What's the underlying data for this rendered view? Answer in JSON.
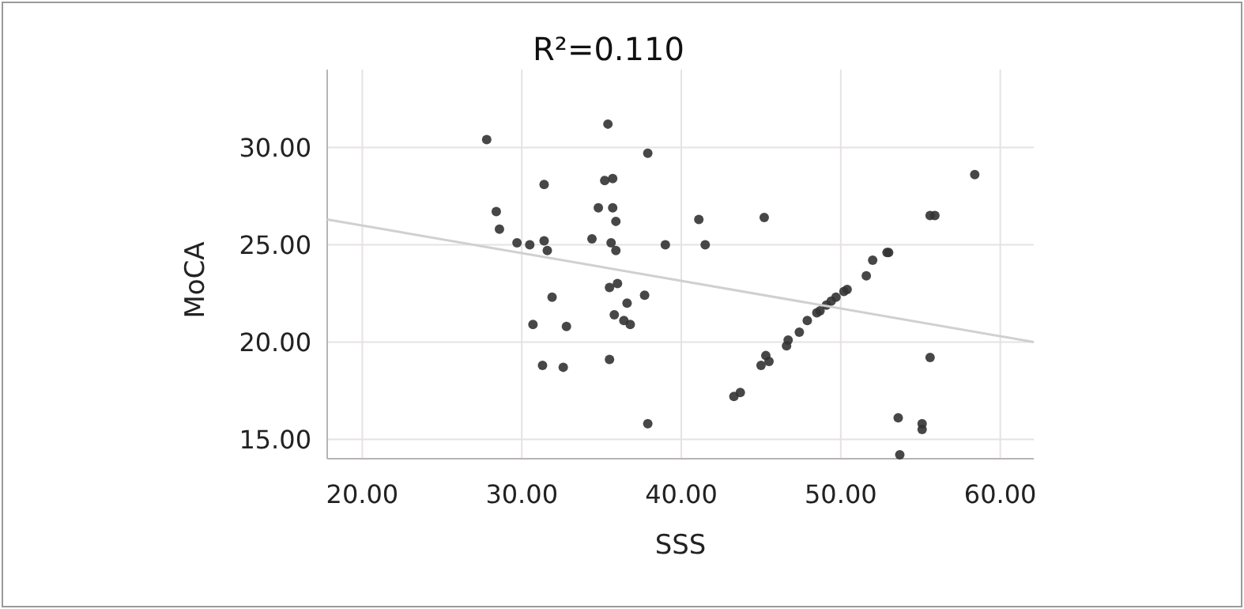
{
  "chart_data": {
    "type": "scatter",
    "title": "R²=0.110",
    "xlabel": "SSS",
    "ylabel": "MoCA",
    "xlim": [
      17.8,
      62.1
    ],
    "ylim": [
      14,
      34
    ],
    "xticks": [
      {
        "value": 20,
        "label": "20.00"
      },
      {
        "value": 30,
        "label": "30.00"
      },
      {
        "value": 40,
        "label": "40.00"
      },
      {
        "value": 50,
        "label": "50.00"
      },
      {
        "value": 60,
        "label": "60.00"
      }
    ],
    "yticks": [
      {
        "value": 15,
        "label": "15.00"
      },
      {
        "value": 20,
        "label": "20.00"
      },
      {
        "value": 25,
        "label": "25.00"
      },
      {
        "value": 30,
        "label": "30.00"
      }
    ],
    "grid": true,
    "series": [
      {
        "marker": "circle",
        "color": "#333333",
        "x": [
          27.8,
          35.4,
          37.9,
          31.4,
          35.2,
          35.7,
          28.4,
          28.6,
          34.8,
          35.7,
          35.9,
          29.7,
          30.5,
          31.4,
          31.6,
          34.4,
          35.6,
          35.9,
          39.0,
          41.5,
          41.1,
          35.5,
          36.0,
          31.9,
          37.7,
          36.6,
          35.8,
          36.4,
          36.8,
          30.7,
          32.8,
          35.5,
          31.3,
          32.6,
          37.9,
          45.2,
          58.4,
          55.6,
          55.9,
          53.0,
          52.9,
          52.0,
          51.6,
          50.4,
          50.2,
          49.7,
          49.4,
          49.1,
          48.7,
          48.5,
          47.9,
          47.4,
          46.7,
          46.6,
          45.3,
          45.5,
          45.0,
          43.7,
          43.3,
          55.6,
          53.6,
          55.1,
          55.1,
          53.7
        ],
        "values": [
          30.4,
          31.2,
          29.7,
          28.1,
          28.3,
          28.4,
          26.7,
          25.8,
          26.9,
          26.9,
          26.2,
          25.1,
          25.0,
          25.2,
          24.7,
          25.3,
          25.1,
          24.7,
          25.0,
          25.0,
          26.3,
          22.8,
          23.0,
          22.3,
          22.4,
          22.0,
          21.4,
          21.1,
          20.9,
          20.9,
          20.8,
          19.1,
          18.8,
          18.7,
          15.8,
          26.4,
          28.6,
          26.5,
          26.5,
          24.6,
          24.6,
          24.2,
          23.4,
          22.7,
          22.6,
          22.3,
          22.1,
          21.9,
          21.6,
          21.5,
          21.1,
          20.5,
          20.1,
          19.8,
          19.3,
          19.0,
          18.8,
          17.4,
          17.2,
          19.2,
          16.1,
          15.8,
          15.5,
          14.2
        ]
      },
      {
        "type": "line",
        "color": "#d0d0d0",
        "x": [
          17.8,
          62.1
        ],
        "values": [
          26.3,
          20.0
        ]
      }
    ]
  }
}
